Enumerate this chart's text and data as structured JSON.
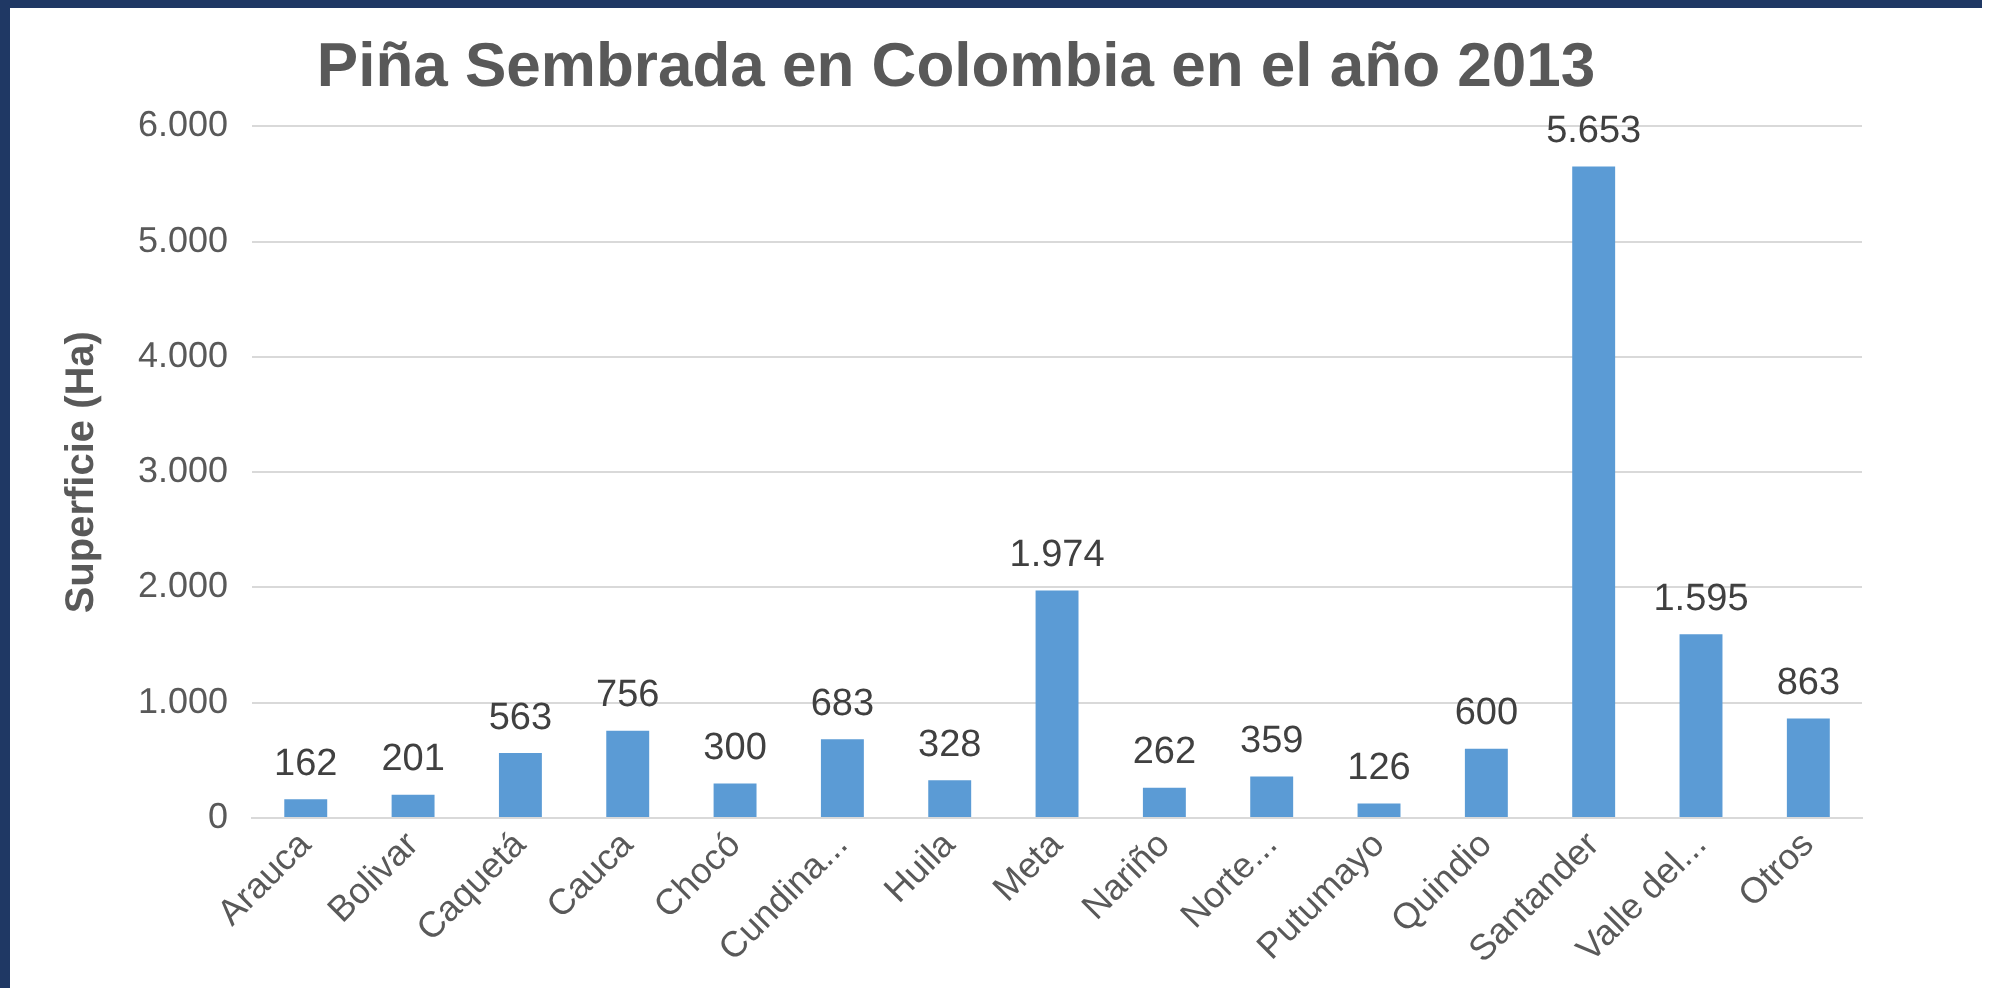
{
  "chart_data": {
    "type": "bar",
    "title": "Piña Sembrada en Colombia en el año 2013",
    "ylabel": "Superficie (Ha)",
    "categories": [
      "Arauca",
      "Bolivar",
      "Caquetá",
      "Cauca",
      "Chocó",
      "Cundina...",
      "Huila",
      "Meta",
      "Nariño",
      "Norte...",
      "Putumayo",
      "Quindio",
      "Santander",
      "Valle del...",
      "Otros"
    ],
    "values": [
      162,
      201,
      563,
      756,
      300,
      683,
      328,
      1974,
      262,
      359,
      126,
      600,
      5653,
      1595,
      863
    ],
    "value_labels": [
      "162",
      "201",
      "563",
      "756",
      "300",
      "683",
      "328",
      "1.974",
      "262",
      "359",
      "126",
      "600",
      "5.653",
      "1.595",
      "863"
    ],
    "color": "#5b9bd5",
    "ylim": [
      0,
      6000
    ],
    "yticks": [
      0,
      {
        "value": 1000,
        "label": "1.000"
      },
      {
        "value": 2000,
        "label": "2.000"
      },
      {
        "value": 3000,
        "label": "3.000"
      },
      {
        "value": 4000,
        "label": "4.000"
      },
      {
        "value": 5000,
        "label": "5.000"
      },
      {
        "value": 6000,
        "label": "6.000"
      }
    ],
    "grid": "y",
    "legend": false
  }
}
